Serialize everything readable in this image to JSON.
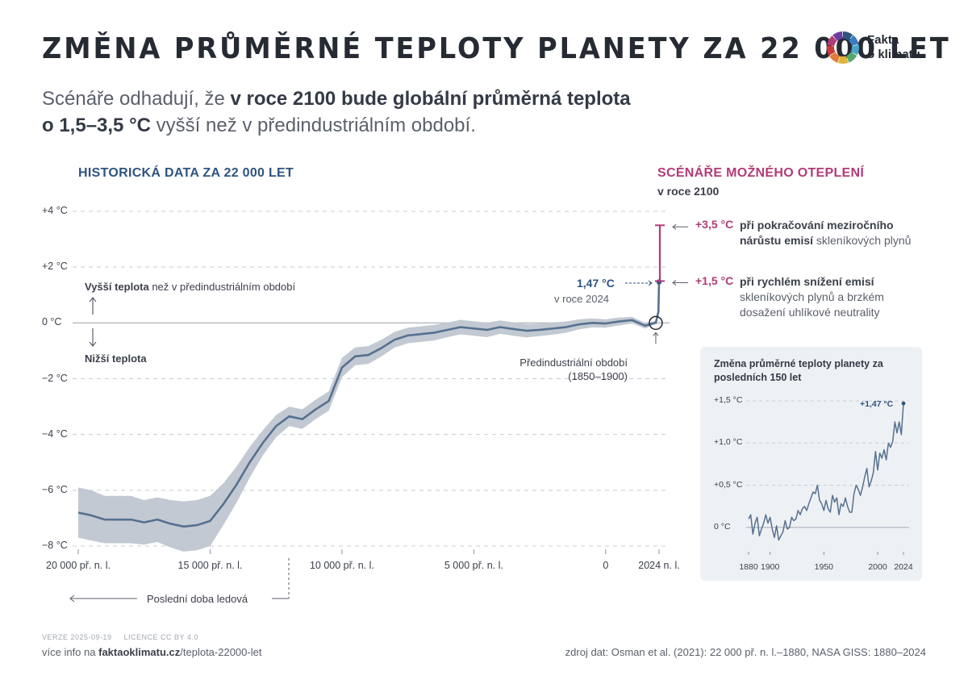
{
  "header": {
    "title": "ZMĚNA PRŮMĚRNÉ TEPLOTY PLANETY ZA 22 000 LET",
    "subtitle_1": "Scénáře odhadují, že ",
    "subtitle_2": "v roce 2100 bude globální průměrná teplota",
    "subtitle_3": "o 1,5–3,5 °C",
    "subtitle_4": " vyšší než v předindustriálním období.",
    "logo_line1": "Fakta",
    "logo_line2": "o klimatu",
    "logo_colors": [
      "#2e5480",
      "#3b7bbf",
      "#4aa3c9",
      "#55a86b",
      "#e0b43a",
      "#e07b3a",
      "#c93a3a",
      "#b23b77",
      "#6b3fa0"
    ]
  },
  "sections": {
    "historical": "HISTORICKÁ DATA ZA 22 000 LET",
    "scenarios": "SCÉNÁŘE MOŽNÉHO OTEPLENÍ",
    "scenarios_sub": "v roce 2100"
  },
  "annotations": {
    "higher_bold": "Vyšší teplota",
    "higher_rest": " než v předindustriálním období",
    "lower": "Nižší teplota",
    "current_value": "1,47 °C",
    "current_year": "v roce 2024",
    "preindustrial_1": "Předindustriální období",
    "preindustrial_2": "(1850–1900)",
    "ice_age": "Poslední doba ledová",
    "high_value": "+3,5 °C",
    "high_bold": "při pokračování meziročního",
    "high_bold2": "nárůstu emisí",
    "high_rest": " skleníkových plynů",
    "low_value": "+1,5 °C",
    "low_bold": "při rychlém snížení emisí",
    "low_rest1": "skleníkových plynů a brzkém",
    "low_rest2": "dosažení uhlíkové neutrality"
  },
  "colors": {
    "line": "#56718f",
    "band": "#c3c9d2",
    "scenario": "#b23b77",
    "title_blue": "#2e5480"
  },
  "chart_data": [
    {
      "type": "line",
      "yticks": [
        "+4 °C",
        "+2 °C",
        "0 °C",
        "−2 °C",
        "−4 °C",
        "−6 °C",
        "−8 °C"
      ],
      "ytick_values": [
        4,
        2,
        0,
        -2,
        -4,
        -6,
        -8
      ],
      "xticks": [
        "20 000 př. n. l.",
        "15 000 př. n. l.",
        "10 000 př. n. l.",
        "5 000 př. n. l.",
        "0",
        "2024 n. l."
      ],
      "xtick_values": [
        -20000,
        -15000,
        -10000,
        -5000,
        0,
        2024
      ],
      "xlim": [
        -20000,
        2024
      ],
      "ylim": [
        -8,
        4
      ],
      "series": [
        {
          "x": [
            -20000,
            -19500,
            -19000,
            -18500,
            -18000,
            -17500,
            -17000,
            -16500,
            -16000,
            -15500,
            -15000,
            -14500,
            -14000,
            -13500,
            -13000,
            -12500,
            -12000,
            -11500,
            -11000,
            -10500,
            -10000,
            -9500,
            -9000,
            -8500,
            -8000,
            -7500,
            -7000,
            -6500,
            -6000,
            -5500,
            -5000,
            -4500,
            -4000,
            -3500,
            -3000,
            -2500,
            -2000,
            -1500,
            -1000,
            -500,
            0,
            500,
            1000,
            1500,
            1850,
            1900,
            2000,
            2024
          ],
          "y": [
            -6.8,
            -6.9,
            -7.05,
            -7.05,
            -7.05,
            -7.15,
            -7.05,
            -7.2,
            -7.3,
            -7.25,
            -7.1,
            -6.5,
            -5.8,
            -5.0,
            -4.3,
            -3.7,
            -3.35,
            -3.45,
            -3.1,
            -2.8,
            -1.6,
            -1.2,
            -1.15,
            -0.9,
            -0.6,
            -0.45,
            -0.4,
            -0.35,
            -0.25,
            -0.15,
            -0.2,
            -0.25,
            -0.15,
            -0.22,
            -0.28,
            -0.25,
            -0.2,
            -0.15,
            -0.05,
            0.0,
            -0.02,
            0.05,
            0.1,
            -0.1,
            0.0,
            0.0,
            0.4,
            1.47
          ],
          "uncertainty": [
            0.9,
            0.9,
            0.85,
            0.85,
            0.85,
            0.8,
            0.8,
            0.85,
            0.9,
            0.9,
            0.9,
            0.75,
            0.65,
            0.55,
            0.45,
            0.4,
            0.35,
            0.35,
            0.35,
            0.35,
            0.35,
            0.32,
            0.32,
            0.3,
            0.28,
            0.28,
            0.28,
            0.28,
            0.26,
            0.26,
            0.26,
            0.26,
            0.24,
            0.24,
            0.24,
            0.22,
            0.22,
            0.2,
            0.18,
            0.16,
            0.15,
            0.14,
            0.12,
            0.1,
            0.06,
            0.05,
            0.04,
            0.04
          ]
        }
      ],
      "scenarios": [
        {
          "label": "+1,5 °C",
          "value": 1.5
        },
        {
          "label": "+3,5 °C",
          "value": 3.5
        }
      ]
    },
    {
      "type": "line",
      "title": "Změna průměrné teploty planety za posledních 150 let",
      "yticks": [
        "+1,5 °C",
        "+1,0 °C",
        "+0,5 °C",
        "0 °C"
      ],
      "ytick_values": [
        1.5,
        1.0,
        0.5,
        0
      ],
      "xticks": [
        "1880",
        "1900",
        "1950",
        "2000",
        "2024"
      ],
      "xtick_values": [
        1880,
        1900,
        1950,
        2000,
        2024
      ],
      "xlim": [
        1880,
        2024
      ],
      "ylim": [
        -0.25,
        1.5
      ],
      "end_label": "+1,47 °C",
      "series": [
        {
          "x": [
            1880,
            1882,
            1884,
            1886,
            1888,
            1890,
            1892,
            1894,
            1896,
            1898,
            1900,
            1902,
            1904,
            1906,
            1908,
            1910,
            1912,
            1914,
            1916,
            1918,
            1920,
            1922,
            1924,
            1926,
            1928,
            1930,
            1932,
            1934,
            1936,
            1938,
            1940,
            1942,
            1944,
            1946,
            1948,
            1950,
            1952,
            1954,
            1956,
            1958,
            1960,
            1962,
            1964,
            1966,
            1968,
            1970,
            1972,
            1974,
            1976,
            1978,
            1980,
            1982,
            1984,
            1986,
            1988,
            1990,
            1992,
            1994,
            1996,
            1998,
            2000,
            2002,
            2004,
            2006,
            2008,
            2010,
            2012,
            2014,
            2016,
            2018,
            2020,
            2022,
            2024
          ],
          "y": [
            0.1,
            0.15,
            -0.08,
            0.05,
            0.12,
            -0.1,
            -0.02,
            0.05,
            0.15,
            0.05,
            0.12,
            -0.02,
            -0.12,
            0.02,
            -0.15,
            -0.1,
            -0.05,
            0.08,
            -0.02,
            0.0,
            0.12,
            0.08,
            0.1,
            0.2,
            0.15,
            0.22,
            0.25,
            0.2,
            0.28,
            0.35,
            0.42,
            0.4,
            0.5,
            0.32,
            0.28,
            0.2,
            0.32,
            0.22,
            0.18,
            0.38,
            0.3,
            0.35,
            0.15,
            0.28,
            0.25,
            0.35,
            0.25,
            0.18,
            0.18,
            0.4,
            0.5,
            0.45,
            0.38,
            0.48,
            0.6,
            0.7,
            0.48,
            0.55,
            0.65,
            0.9,
            0.68,
            0.88,
            0.82,
            0.92,
            0.8,
            1.0,
            0.95,
            1.02,
            1.25,
            1.12,
            1.25,
            1.1,
            1.47
          ]
        }
      ]
    }
  ],
  "footer": {
    "meta": "VERZE 2025-09-19     LICENCE CC BY 4.0",
    "more_prefix": "více info na ",
    "more_domain": "faktaoklimatu.cz",
    "more_path": "/teplota-22000-let",
    "source": "zdroj dat: Osman et al. (2021): 22 000 př. n. l.–1880, NASA GISS: 1880–2024"
  }
}
